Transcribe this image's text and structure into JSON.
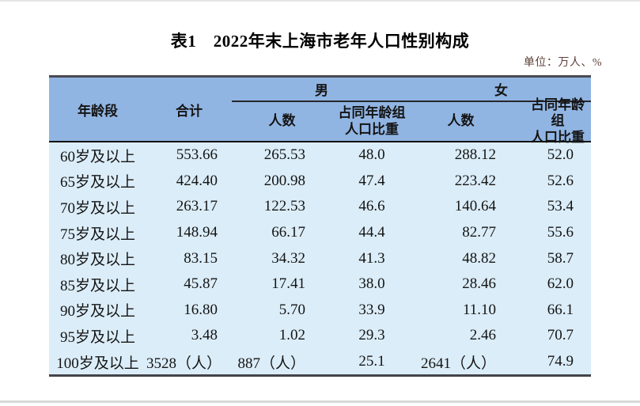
{
  "title": "表1　2022年末上海市老年人口性别构成",
  "unit_note": "单位：万人、%",
  "header": {
    "age_group": "年龄段",
    "total": "合计",
    "male": "男",
    "female": "女",
    "count": "人数",
    "share_line1": "占同年龄组",
    "share_line2": "人口比重"
  },
  "colors": {
    "header_bg": "#91B5E2",
    "body_bg": "#DBEDF8",
    "border_dark": "#43434A",
    "header_rule": "#111111",
    "unit_text": "#5E403A"
  },
  "chart_data": {
    "type": "table",
    "title": "表1　2022年末上海市老年人口性别构成",
    "unit": "单位：万人、%",
    "columns": [
      "年龄段",
      "合计",
      "男-人数",
      "男-占同年龄组人口比重",
      "女-人数",
      "女-占同年龄组人口比重"
    ],
    "rows": [
      [
        "60岁及以上",
        "553.66",
        "265.53",
        "48.0",
        "288.12",
        "52.0"
      ],
      [
        "65岁及以上",
        "424.40",
        "200.98",
        "47.4",
        "223.42",
        "52.6"
      ],
      [
        "70岁及以上",
        "263.17",
        "122.53",
        "46.6",
        "140.64",
        "53.4"
      ],
      [
        "75岁及以上",
        "148.94",
        "66.17",
        "44.4",
        "82.77",
        "55.6"
      ],
      [
        "80岁及以上",
        "83.15",
        "34.32",
        "41.3",
        "48.82",
        "58.7"
      ],
      [
        "85岁及以上",
        "45.87",
        "17.41",
        "38.0",
        "28.46",
        "62.0"
      ],
      [
        "90岁及以上",
        "16.80",
        "5.70",
        "33.9",
        "11.10",
        "66.1"
      ],
      [
        "95岁及以上",
        "3.48",
        "1.02",
        "29.3",
        "2.46",
        "70.7"
      ],
      [
        "100岁及以上",
        "3528（人）",
        "887（人）",
        "25.1",
        "2641（人）",
        "74.9"
      ]
    ]
  }
}
